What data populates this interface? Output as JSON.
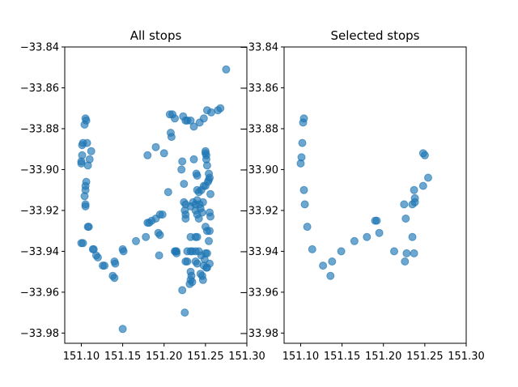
{
  "chart_data": [
    {
      "type": "scatter",
      "title": "All stops",
      "xlim": [
        151.08,
        151.3
      ],
      "ylim": [
        -33.985,
        -33.84
      ],
      "xticks": [
        "151.10",
        "151.15",
        "151.20",
        "151.25",
        "151.30"
      ],
      "yticks": [
        "−33.84",
        "−33.86",
        "−33.88",
        "−33.90",
        "−33.92",
        "−33.94",
        "−33.96",
        "−33.98"
      ],
      "xtick_values": [
        151.1,
        151.15,
        151.2,
        151.25,
        151.3
      ],
      "ytick_values": [
        -33.84,
        -33.86,
        -33.88,
        -33.9,
        -33.92,
        -33.94,
        -33.96,
        -33.98
      ],
      "color": "#1f77b4",
      "points": [
        [
          151.105,
          -33.875
        ],
        [
          151.106,
          -33.876
        ],
        [
          151.104,
          -33.878
        ],
        [
          151.102,
          -33.887
        ],
        [
          151.101,
          -33.888
        ],
        [
          151.101,
          -33.893
        ],
        [
          151.1,
          -33.896
        ],
        [
          151.1,
          -33.897
        ],
        [
          151.107,
          -33.887
        ],
        [
          151.112,
          -33.891
        ],
        [
          151.11,
          -33.895
        ],
        [
          151.108,
          -33.898
        ],
        [
          151.106,
          -33.906
        ],
        [
          151.105,
          -33.908
        ],
        [
          151.105,
          -33.91
        ],
        [
          151.104,
          -33.913
        ],
        [
          151.105,
          -33.917
        ],
        [
          151.105,
          -33.918
        ],
        [
          151.108,
          -33.928
        ],
        [
          151.109,
          -33.928
        ],
        [
          151.1,
          -33.936
        ],
        [
          151.102,
          -33.936
        ],
        [
          151.115,
          -33.939
        ],
        [
          151.114,
          -33.939
        ],
        [
          151.118,
          -33.942
        ],
        [
          151.12,
          -33.943
        ],
        [
          151.126,
          -33.947
        ],
        [
          151.128,
          -33.947
        ],
        [
          151.14,
          -33.945
        ],
        [
          151.141,
          -33.946
        ],
        [
          151.138,
          -33.952
        ],
        [
          151.14,
          -33.953
        ],
        [
          151.15,
          -33.939
        ],
        [
          151.151,
          -33.94
        ],
        [
          151.166,
          -33.935
        ],
        [
          151.15,
          -33.978
        ],
        [
          151.178,
          -33.933
        ],
        [
          151.18,
          -33.926
        ],
        [
          151.182,
          -33.926
        ],
        [
          151.185,
          -33.925
        ],
        [
          151.19,
          -33.924
        ],
        [
          151.195,
          -33.922
        ],
        [
          151.198,
          -33.922
        ],
        [
          151.193,
          -33.931
        ],
        [
          151.195,
          -33.932
        ],
        [
          151.194,
          -33.942
        ],
        [
          151.19,
          -33.889
        ],
        [
          151.2,
          -33.892
        ],
        [
          151.18,
          -33.893
        ],
        [
          151.205,
          -33.911
        ],
        [
          151.207,
          -33.873
        ],
        [
          151.21,
          -33.873
        ],
        [
          151.213,
          -33.875
        ],
        [
          151.208,
          -33.882
        ],
        [
          151.209,
          -33.884
        ],
        [
          151.214,
          -33.94
        ],
        [
          151.215,
          -33.941
        ],
        [
          151.222,
          -33.959
        ],
        [
          151.225,
          -33.97
        ],
        [
          151.223,
          -33.874
        ],
        [
          151.226,
          -33.876
        ],
        [
          151.228,
          -33.876
        ],
        [
          151.232,
          -33.876
        ],
        [
          151.236,
          -33.879
        ],
        [
          151.243,
          -33.877
        ],
        [
          151.248,
          -33.875
        ],
        [
          151.252,
          -33.871
        ],
        [
          151.257,
          -33.872
        ],
        [
          151.265,
          -33.871
        ],
        [
          151.268,
          -33.87
        ],
        [
          151.275,
          -33.851
        ],
        [
          151.222,
          -33.896
        ],
        [
          151.221,
          -33.9
        ],
        [
          151.224,
          -33.907
        ],
        [
          151.224,
          -33.916
        ],
        [
          151.226,
          -33.917
        ],
        [
          151.225,
          -33.92
        ],
        [
          151.226,
          -33.922
        ],
        [
          151.226,
          -33.924
        ],
        [
          151.232,
          -33.918
        ],
        [
          151.235,
          -33.916
        ],
        [
          151.238,
          -33.917
        ],
        [
          151.24,
          -33.915
        ],
        [
          151.243,
          -33.917
        ],
        [
          151.247,
          -33.916
        ],
        [
          151.24,
          -33.91
        ],
        [
          151.242,
          -33.911
        ],
        [
          151.245,
          -33.91
        ],
        [
          151.248,
          -33.908
        ],
        [
          151.25,
          -33.908
        ],
        [
          151.24,
          -33.903
        ],
        [
          151.236,
          -33.895
        ],
        [
          151.239,
          -33.902
        ],
        [
          151.238,
          -33.92
        ],
        [
          151.24,
          -33.922
        ],
        [
          151.242,
          -33.924
        ],
        [
          151.244,
          -33.919
        ],
        [
          151.246,
          -33.921
        ],
        [
          151.25,
          -33.891
        ],
        [
          151.25,
          -33.892
        ],
        [
          151.251,
          -33.893
        ],
        [
          151.251,
          -33.895
        ],
        [
          151.252,
          -33.898
        ],
        [
          151.254,
          -33.902
        ],
        [
          151.254,
          -33.905
        ],
        [
          151.255,
          -33.904
        ],
        [
          151.253,
          -33.906
        ],
        [
          151.256,
          -33.912
        ],
        [
          151.255,
          -33.921
        ],
        [
          151.256,
          -33.923
        ],
        [
          151.25,
          -33.928
        ],
        [
          151.252,
          -33.93
        ],
        [
          151.255,
          -33.93
        ],
        [
          151.254,
          -33.935
        ],
        [
          151.25,
          -33.941
        ],
        [
          151.252,
          -33.941
        ],
        [
          151.249,
          -33.944
        ],
        [
          151.248,
          -33.947
        ],
        [
          151.251,
          -33.948
        ],
        [
          151.252,
          -33.948
        ],
        [
          151.255,
          -33.946
        ],
        [
          151.232,
          -33.933
        ],
        [
          151.238,
          -33.933
        ],
        [
          151.24,
          -33.933
        ],
        [
          151.228,
          -33.94
        ],
        [
          151.232,
          -33.94
        ],
        [
          151.234,
          -33.94
        ],
        [
          151.238,
          -33.94
        ],
        [
          151.242,
          -33.94
        ],
        [
          151.245,
          -33.942
        ],
        [
          151.226,
          -33.945
        ],
        [
          151.228,
          -33.945
        ],
        [
          151.238,
          -33.945
        ],
        [
          151.24,
          -33.946
        ],
        [
          151.232,
          -33.95
        ],
        [
          151.233,
          -33.952
        ],
        [
          151.232,
          -33.954
        ],
        [
          151.231,
          -33.956
        ],
        [
          151.234,
          -33.955
        ],
        [
          151.244,
          -33.951
        ],
        [
          151.246,
          -33.952
        ],
        [
          151.247,
          -33.954
        ],
        [
          151.213,
          -33.94
        ],
        [
          151.215,
          -33.94
        ]
      ]
    },
    {
      "type": "scatter",
      "title": "Selected stops",
      "xlim": [
        151.08,
        151.3
      ],
      "ylim": [
        -33.985,
        -33.84
      ],
      "xticks": [
        "151.10",
        "151.15",
        "151.20",
        "151.25",
        "151.30"
      ],
      "yticks": [
        "−33.84",
        "−33.86",
        "−33.88",
        "−33.90",
        "−33.92",
        "−33.94",
        "−33.96",
        "−33.98"
      ],
      "xtick_values": [
        151.1,
        151.15,
        151.2,
        151.25,
        151.3
      ],
      "ytick_values": [
        -33.84,
        -33.86,
        -33.88,
        -33.9,
        -33.92,
        -33.94,
        -33.96,
        -33.98
      ],
      "color": "#1f77b4",
      "points": [
        [
          151.104,
          -33.875
        ],
        [
          151.103,
          -33.877
        ],
        [
          151.102,
          -33.887
        ],
        [
          151.101,
          -33.894
        ],
        [
          151.1,
          -33.897
        ],
        [
          151.104,
          -33.91
        ],
        [
          151.105,
          -33.917
        ],
        [
          151.108,
          -33.928
        ],
        [
          151.114,
          -33.939
        ],
        [
          151.127,
          -33.947
        ],
        [
          151.136,
          -33.952
        ],
        [
          151.138,
          -33.945
        ],
        [
          151.149,
          -33.94
        ],
        [
          151.165,
          -33.935
        ],
        [
          151.18,
          -33.933
        ],
        [
          151.19,
          -33.925
        ],
        [
          151.192,
          -33.925
        ],
        [
          151.195,
          -33.931
        ],
        [
          151.213,
          -33.94
        ],
        [
          151.226,
          -33.945
        ],
        [
          151.225,
          -33.917
        ],
        [
          151.227,
          -33.924
        ],
        [
          151.228,
          -33.941
        ],
        [
          151.235,
          -33.933
        ],
        [
          151.235,
          -33.917
        ],
        [
          151.237,
          -33.941
        ],
        [
          151.237,
          -33.91
        ],
        [
          151.238,
          -33.914
        ],
        [
          151.238,
          -33.916
        ],
        [
          151.248,
          -33.908
        ],
        [
          151.248,
          -33.892
        ],
        [
          151.25,
          -33.893
        ],
        [
          151.254,
          -33.904
        ]
      ]
    }
  ]
}
